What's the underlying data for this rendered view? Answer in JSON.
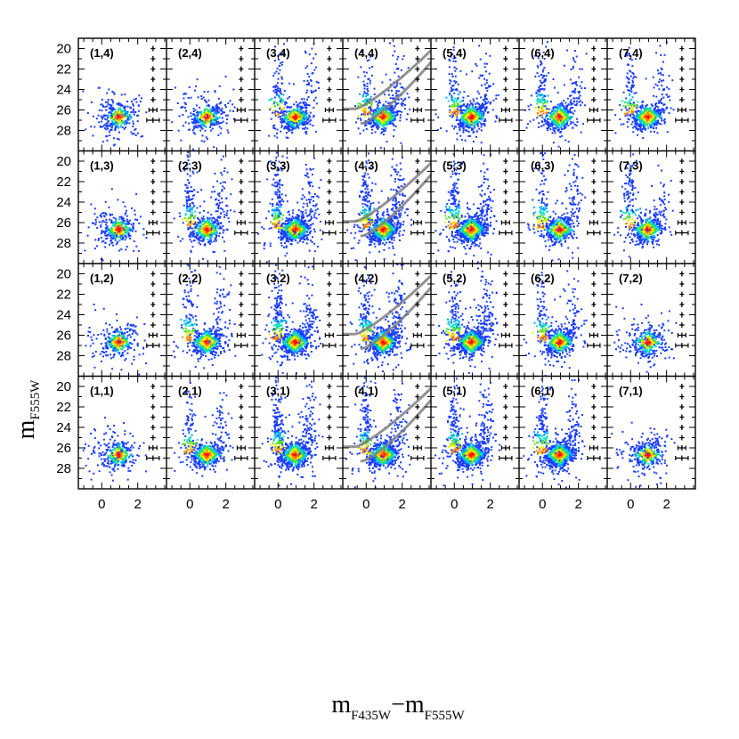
{
  "chart_data": {
    "type": "scatter",
    "title": "",
    "xlabel_main": "m",
    "xlabel_sub1": "F435W",
    "xlabel_sep": "−m",
    "xlabel_sub2": "F555W",
    "ylabel_main": "m",
    "ylabel_sub": "F555W",
    "grid": {
      "columns": 7,
      "rows": 4
    },
    "xlim": [
      -1.3,
      3.6
    ],
    "ylim": [
      30,
      19
    ],
    "x_ticks": [
      0,
      2
    ],
    "x_tick_labels": [
      "0",
      "2"
    ],
    "y_ticks": [
      20,
      22,
      24,
      26,
      28
    ],
    "y_tick_labels": [
      "20",
      "22",
      "24",
      "26",
      "28"
    ],
    "error_bar_x": 2.85,
    "error_bar_mags": [
      20,
      21,
      22,
      23,
      24,
      25,
      26,
      27
    ],
    "error_bar_xerr": [
      0.05,
      0.05,
      0.06,
      0.07,
      0.1,
      0.14,
      0.22,
      0.35
    ],
    "panels": [
      {
        "label": "(1,4)",
        "col": 1,
        "row": 4,
        "density": "low",
        "isochrones": false
      },
      {
        "label": "(2,4)",
        "col": 2,
        "row": 4,
        "density": "low",
        "isochrones": false
      },
      {
        "label": "(3,4)",
        "col": 3,
        "row": 4,
        "density": "med",
        "isochrones": false
      },
      {
        "label": "(4,4)",
        "col": 4,
        "row": 4,
        "density": "med",
        "isochrones": true
      },
      {
        "label": "(5,4)",
        "col": 5,
        "row": 4,
        "density": "med",
        "isochrones": false
      },
      {
        "label": "(6,4)",
        "col": 6,
        "row": 4,
        "density": "med",
        "isochrones": false
      },
      {
        "label": "(7,4)",
        "col": 7,
        "row": 4,
        "density": "med",
        "isochrones": false
      },
      {
        "label": "(1,3)",
        "col": 1,
        "row": 3,
        "density": "low",
        "isochrones": false
      },
      {
        "label": "(2,3)",
        "col": 2,
        "row": 3,
        "density": "med",
        "isochrones": false
      },
      {
        "label": "(3,3)",
        "col": 3,
        "row": 3,
        "density": "high",
        "isochrones": false
      },
      {
        "label": "(4,3)",
        "col": 4,
        "row": 3,
        "density": "high",
        "isochrones": true
      },
      {
        "label": "(5,3)",
        "col": 5,
        "row": 3,
        "density": "high",
        "isochrones": false
      },
      {
        "label": "(6,3)",
        "col": 6,
        "row": 3,
        "density": "med",
        "isochrones": false
      },
      {
        "label": "(7,3)",
        "col": 7,
        "row": 3,
        "density": "med",
        "isochrones": false
      },
      {
        "label": "(1,2)",
        "col": 1,
        "row": 2,
        "density": "low",
        "isochrones": false
      },
      {
        "label": "(2,2)",
        "col": 2,
        "row": 2,
        "density": "med",
        "isochrones": false
      },
      {
        "label": "(3,2)",
        "col": 3,
        "row": 2,
        "density": "high",
        "isochrones": false
      },
      {
        "label": "(4,2)",
        "col": 4,
        "row": 2,
        "density": "high",
        "isochrones": true
      },
      {
        "label": "(5,2)",
        "col": 5,
        "row": 2,
        "density": "high",
        "isochrones": false
      },
      {
        "label": "(6,2)",
        "col": 6,
        "row": 2,
        "density": "med",
        "isochrones": false
      },
      {
        "label": "(7,2)",
        "col": 7,
        "row": 2,
        "density": "low",
        "isochrones": false
      },
      {
        "label": "(1,1)",
        "col": 1,
        "row": 1,
        "density": "low",
        "isochrones": false
      },
      {
        "label": "(2,1)",
        "col": 2,
        "row": 1,
        "density": "med",
        "isochrones": false
      },
      {
        "label": "(3,1)",
        "col": 3,
        "row": 1,
        "density": "high",
        "isochrones": false
      },
      {
        "label": "(4,1)",
        "col": 4,
        "row": 1,
        "density": "high",
        "isochrones": true
      },
      {
        "label": "(5,1)",
        "col": 5,
        "row": 1,
        "density": "high",
        "isochrones": false
      },
      {
        "label": "(6,1)",
        "col": 6,
        "row": 1,
        "density": "high",
        "isochrones": false
      },
      {
        "label": "(7,1)",
        "col": 7,
        "row": 1,
        "density": "low",
        "isochrones": false
      }
    ]
  },
  "colors": {
    "density_scale": [
      "#1a3cff",
      "#00a8ff",
      "#00e0c0",
      "#50e030",
      "#f0f000",
      "#ff8000",
      "#ff1010"
    ],
    "isochrone": "#808080",
    "frame": "#000000"
  }
}
